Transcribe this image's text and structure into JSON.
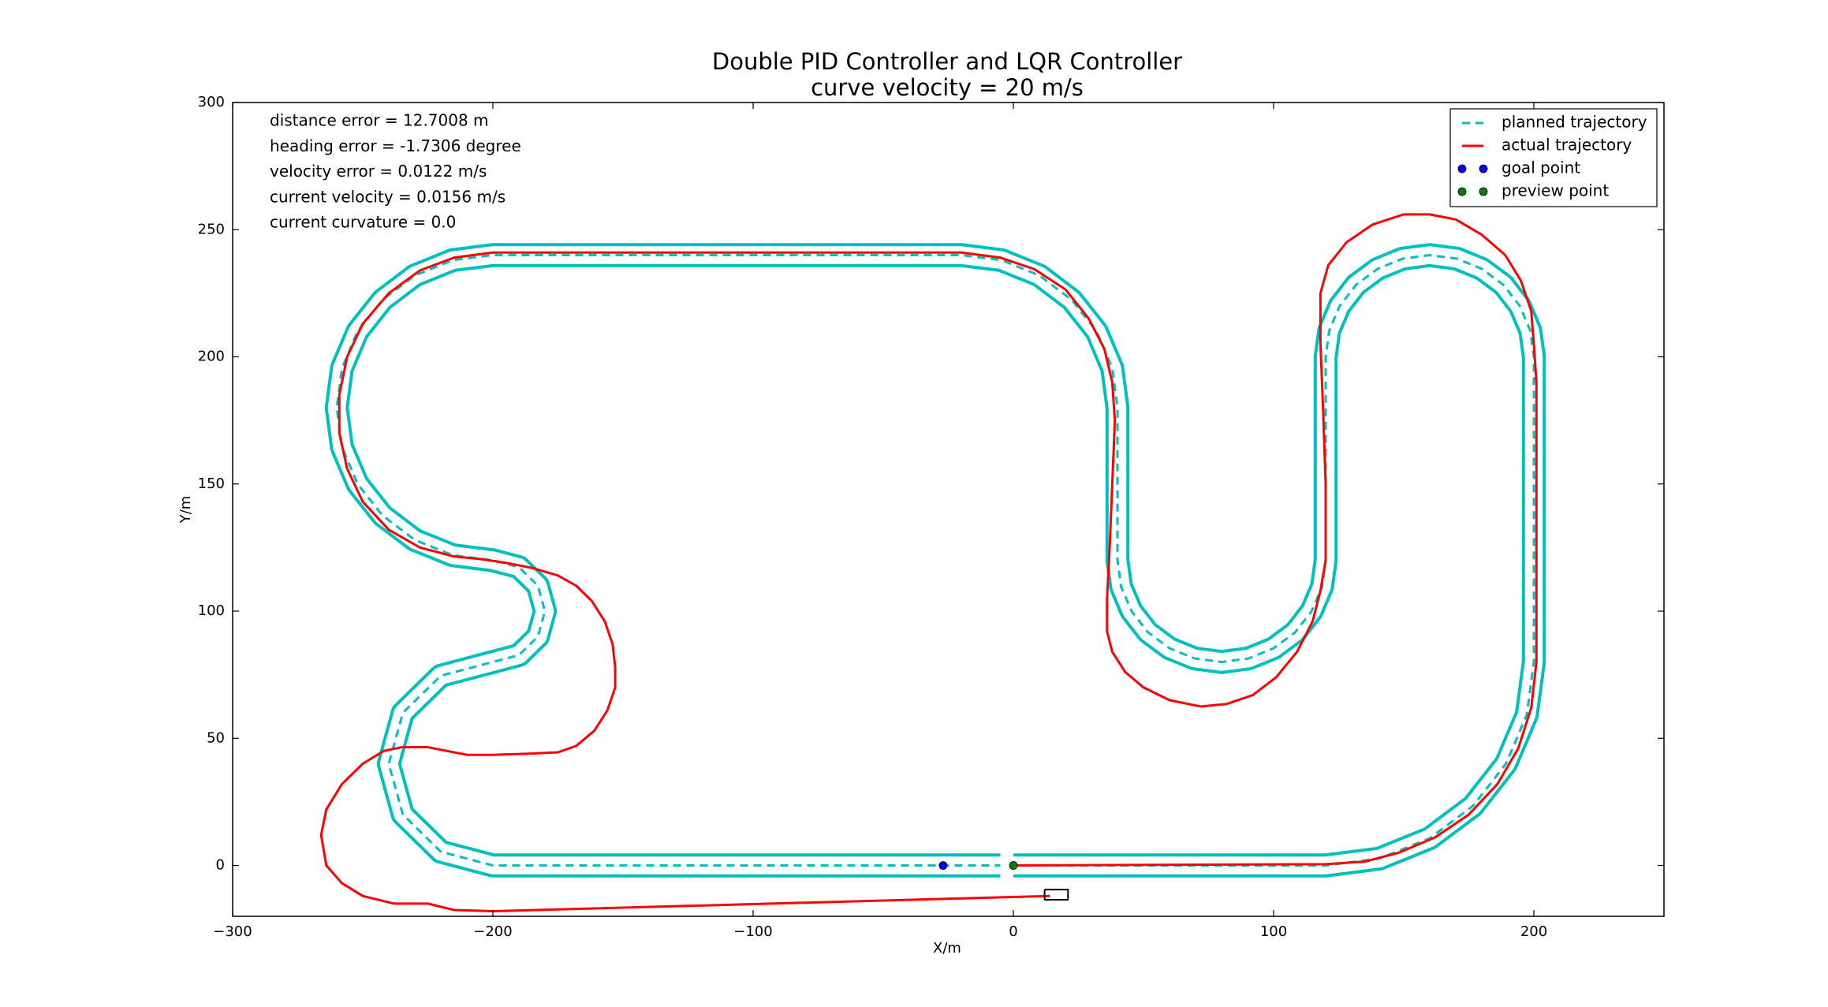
{
  "chart_data": {
    "type": "line",
    "title": "Double PID Controller and LQR Controller",
    "subtitle": "curve velocity = 20 m/s",
    "xlabel": "X/m",
    "ylabel": "Y/m",
    "annotations": [
      "distance error = 12.7008 m",
      "heading error = -1.7306 degree",
      "velocity error = 0.0122 m/s",
      "current velocity = 0.0156 m/s",
      "current curvature = 0.0"
    ],
    "xlim": [
      -300,
      250
    ],
    "ylim": [
      -20,
      300
    ],
    "xticks": [
      {
        "value": -300,
        "label": "−300"
      },
      {
        "value": -200,
        "label": "−200"
      },
      {
        "value": -100,
        "label": "−100"
      },
      0,
      100,
      200
    ],
    "yticks": [
      0,
      50,
      100,
      150,
      200,
      250,
      300
    ],
    "legend": "upper right",
    "series": [
      {
        "name": "planned trajectory",
        "color": "#00bfbf",
        "style": "dashed",
        "track_half_width": 4,
        "x": [
          0,
          120,
          140.7,
          160,
          176.6,
          189.3,
          197.3,
          200,
          200,
          198.6,
          194.6,
          188.3,
          180,
          170.4,
          160,
          149.6,
          140,
          131.7,
          125.4,
          121.4,
          120,
          120,
          118.6,
          114.6,
          108.3,
          100,
          90.4,
          80,
          69.6,
          60,
          51.7,
          45.4,
          41.4,
          40,
          40,
          38,
          32,
          22.4,
          10,
          -4.5,
          -20,
          -200,
          -215.5,
          -230,
          -242.4,
          -252,
          -258,
          -260,
          -258,
          -252,
          -242.4,
          -230,
          -215.5,
          -200,
          -190,
          -182.7,
          -180,
          -182.7,
          -190,
          -200,
          -220,
          -234.6,
          -240,
          -234.6,
          -220,
          -200,
          -5
        ],
        "y": [
          0,
          0,
          2.7,
          10.7,
          23.4,
          40,
          59.3,
          80,
          200,
          210.4,
          220,
          228.3,
          234.6,
          238.6,
          240,
          238.6,
          234.6,
          228.3,
          220,
          210.4,
          200,
          120,
          109.6,
          100,
          91.7,
          85.4,
          81.4,
          80,
          81.4,
          85.4,
          91.7,
          100,
          109.6,
          120,
          180,
          195.5,
          210,
          222.4,
          232,
          238,
          240,
          240,
          238,
          232,
          222.4,
          210,
          195.5,
          180,
          164.5,
          150,
          137.6,
          128,
          122,
          120,
          117.3,
          110,
          100,
          90,
          82.7,
          80,
          74.6,
          60,
          40,
          20,
          5.4,
          0,
          0
        ]
      },
      {
        "name": "actual trajectory",
        "color": "#ff0000",
        "style": "solid",
        "x": [
          14,
          -200,
          -215,
          -225,
          -238,
          -250,
          -258,
          -264,
          -266,
          -264,
          -258,
          -250,
          -242,
          -235,
          -225,
          -210,
          -200,
          -185,
          -175,
          -168,
          -161,
          -156,
          -153,
          -153,
          -154,
          -157,
          -162,
          -168,
          -175,
          -185,
          -195,
          -205,
          -215,
          -228,
          -240,
          -250,
          -256,
          -259,
          -259,
          -256,
          -250,
          -240,
          -228,
          -215,
          -200,
          -20,
          -5,
          8,
          20,
          29,
          35,
          38,
          39,
          38,
          37,
          36,
          36,
          38,
          43,
          50,
          60,
          72,
          82,
          92,
          101,
          109,
          115,
          118,
          120,
          120,
          119,
          118,
          118,
          121,
          128,
          138,
          150,
          160,
          170,
          180,
          189,
          195,
          199,
          200,
          201,
          201,
          199,
          194,
          186,
          175,
          162,
          148,
          135,
          120,
          0
        ],
        "y": [
          -12,
          -18,
          -17.5,
          -15,
          -15,
          -12,
          -7,
          0,
          12,
          22,
          32,
          40,
          45,
          46.5,
          46.5,
          43.5,
          43.5,
          44,
          44.5,
          47,
          53,
          61,
          70,
          78,
          87,
          96,
          104,
          110,
          114,
          117,
          119,
          120.5,
          121.5,
          125,
          132,
          143,
          156,
          170,
          185,
          200,
          213,
          225,
          234,
          239,
          241,
          241,
          239,
          234.5,
          226.5,
          215,
          203,
          190,
          175,
          150,
          125,
          105,
          92,
          84,
          76,
          70,
          65,
          62.5,
          63.5,
          67,
          74,
          84,
          96,
          108,
          120,
          150,
          180,
          205,
          225,
          236,
          245,
          252,
          256,
          256,
          254,
          248,
          240,
          230,
          218,
          205,
          190,
          80,
          62,
          46,
          32,
          20,
          11,
          5,
          1.5,
          0.5,
          0
        ]
      },
      {
        "name": "goal point",
        "color": "#0000ff",
        "style": "marker",
        "x": [
          -27
        ],
        "y": [
          0
        ]
      },
      {
        "name": "preview point",
        "color": "#008000",
        "style": "marker",
        "x": [
          0
        ],
        "y": [
          0
        ]
      },
      {
        "color": "#000000",
        "style": "solid",
        "x": [
          12,
          21,
          21,
          12,
          12
        ],
        "y": [
          -9.5,
          -9.5,
          -13.5,
          -13.5,
          -9.5
        ]
      }
    ]
  }
}
